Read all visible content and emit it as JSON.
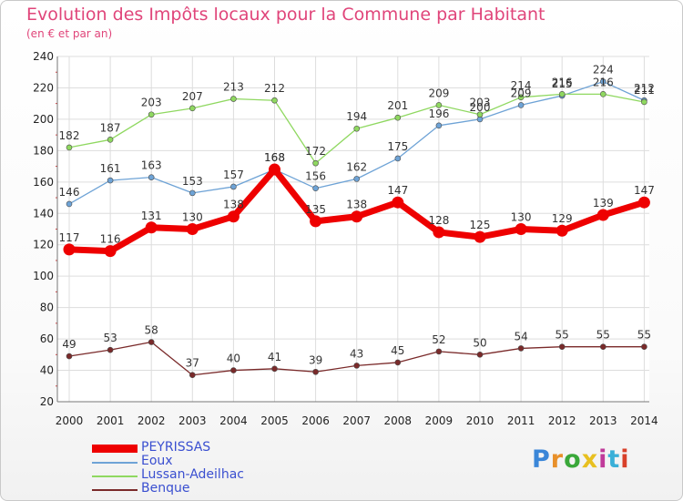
{
  "title": "Evolution des Impôts locaux pour la Commune par Habitant",
  "subtitle": "(en € et par an)",
  "logo": {
    "text": "Proxiti"
  },
  "chart_data": {
    "type": "line",
    "title": "Evolution des Impôts locaux pour la Commune par Habitant",
    "subtitle": "(en € et par an)",
    "xlabel": "",
    "ylabel": "",
    "ylim": [
      20,
      240
    ],
    "yticks": [
      20,
      40,
      60,
      80,
      100,
      120,
      140,
      160,
      180,
      200,
      220,
      240
    ],
    "x": [
      "2000",
      "2001",
      "2002",
      "2003",
      "2004",
      "2005",
      "2006",
      "2007",
      "2008",
      "2009",
      "2010",
      "2011",
      "2012",
      "2013",
      "2014"
    ],
    "grid": true,
    "legend_position": "bottom-left",
    "series": [
      {
        "name": "PEYRISSAS",
        "color": "#ee0000",
        "values": [
          117,
          116,
          131,
          130,
          138,
          168,
          135,
          138,
          147,
          128,
          125,
          130,
          129,
          139,
          147
        ]
      },
      {
        "name": "Eoux",
        "color": "#6ea3d6",
        "values": [
          146,
          161,
          163,
          153,
          157,
          168,
          156,
          162,
          175,
          196,
          200,
          209,
          215,
          224,
          212
        ]
      },
      {
        "name": "Lussan-Adeilhac",
        "color": "#8fd860",
        "values": [
          182,
          187,
          203,
          207,
          213,
          212,
          172,
          194,
          201,
          209,
          203,
          214,
          216,
          216,
          211
        ]
      },
      {
        "name": "Benque",
        "color": "#7a2a2a",
        "values": [
          49,
          53,
          58,
          37,
          40,
          41,
          39,
          43,
          45,
          52,
          50,
          54,
          55,
          55,
          55
        ]
      }
    ]
  }
}
